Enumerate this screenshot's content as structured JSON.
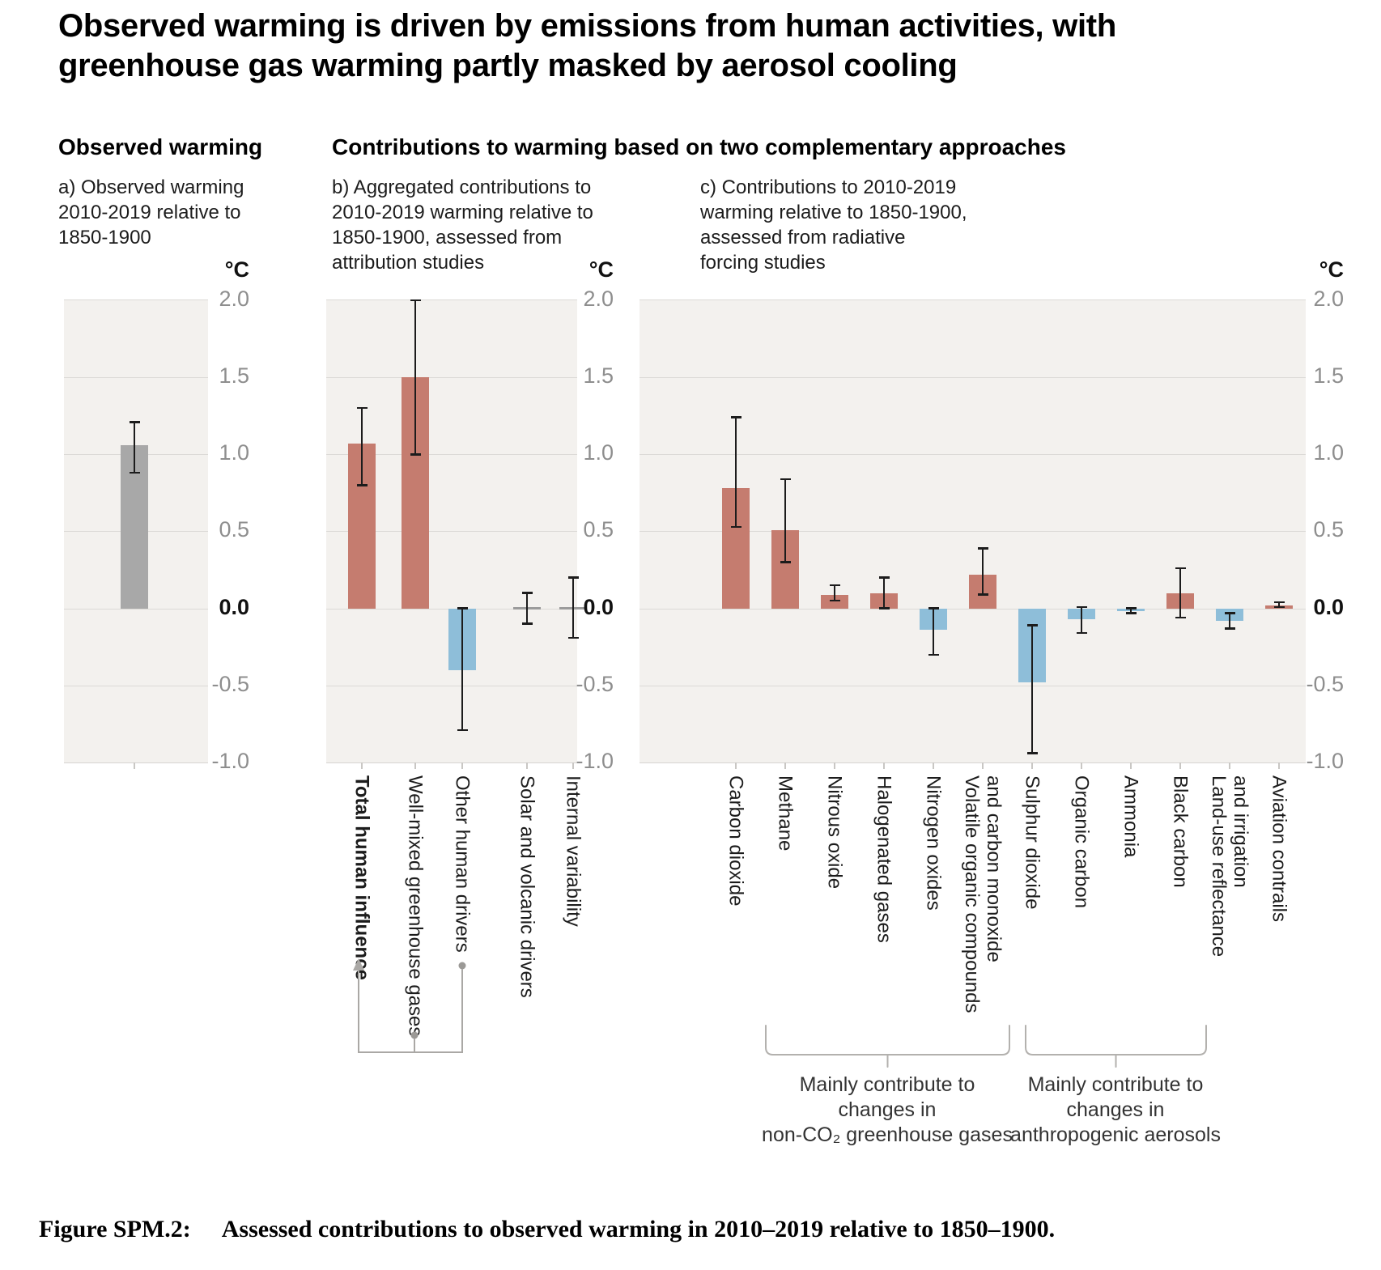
{
  "title": "Observed warming is driven by emissions from human activities, with\ngreenhouse gas warming partly masked by aerosol cooling",
  "headers": {
    "left": "Observed warming",
    "right": "Contributions to warming based on two complementary approaches"
  },
  "axis": {
    "unit": "°C",
    "ticks": [
      "2.0",
      "1.5",
      "1.0",
      "0.5",
      "0.0",
      "-0.5",
      "-1.0"
    ],
    "tick_values": [
      2,
      1.5,
      1,
      0.5,
      0,
      -0.5,
      -1
    ],
    "ymin": -1.0,
    "ymax": 2.0
  },
  "colors": {
    "warm": "#c57c6f",
    "cool": "#8ebed9",
    "neutral": "#a8a8a8",
    "plot_bg": "#f3f1ee",
    "gridline": "#dcdad7",
    "annotation_gray": "#aaa8a5"
  },
  "chart_data": [
    {
      "id": "a",
      "type": "bar",
      "caption": "a) Observed warming\n2010-2019 relative to\n1850-1900",
      "ylabel": "°C",
      "ylim": [
        -1.0,
        2.0
      ],
      "grid": true,
      "categories": [
        "Observed warming"
      ],
      "values": [
        1.06
      ],
      "err_lo": [
        0.88
      ],
      "err_hi": [
        1.21
      ],
      "colors": [
        "neutral"
      ],
      "bold": [
        false
      ],
      "show_category_labels": false
    },
    {
      "id": "b",
      "type": "bar",
      "caption": "b) Aggregated contributions to\n2010-2019 warming relative to\n1850-1900, assessed from\nattribution studies",
      "ylabel": "°C",
      "ylim": [
        -1.0,
        2.0
      ],
      "grid": true,
      "categories": [
        "Total human influence",
        "Well-mixed greenhouse gases",
        "Other human drivers",
        "Solar and volcanic drivers",
        "Internal variability"
      ],
      "values": [
        1.07,
        1.5,
        -0.4,
        0.0,
        0.0
      ],
      "err_lo": [
        0.8,
        1.0,
        -0.79,
        -0.1,
        -0.19
      ],
      "err_hi": [
        1.3,
        2.0,
        0.0,
        0.1,
        0.2
      ],
      "colors": [
        "warm",
        "warm",
        "cool",
        "none",
        "none"
      ],
      "bold": [
        true,
        false,
        false,
        false,
        false
      ],
      "show_category_labels": true
    },
    {
      "id": "c",
      "type": "bar",
      "caption": "c) Contributions to 2010-2019\nwarming relative to 1850-1900,\nassessed from radiative\nforcing studies",
      "ylabel": "°C",
      "ylim": [
        -1.0,
        2.0
      ],
      "grid": true,
      "categories": [
        "Carbon dioxide",
        "Methane",
        "Nitrous oxide",
        "Halogenated gases",
        "Nitrogen oxides",
        "Volatile organic compounds\nand carbon monoxide",
        "Sulphur dioxide",
        "Organic carbon",
        "Ammonia",
        "Black carbon",
        "Land-use reflectance\nand irrigation",
        "Aviation contrails"
      ],
      "values": [
        0.78,
        0.51,
        0.09,
        0.1,
        -0.14,
        0.22,
        -0.48,
        -0.07,
        -0.015,
        0.1,
        -0.08,
        0.02
      ],
      "err_lo": [
        0.53,
        0.3,
        0.05,
        0.0,
        -0.3,
        0.09,
        -0.94,
        -0.16,
        -0.03,
        -0.06,
        -0.13,
        0.01
      ],
      "err_hi": [
        1.24,
        0.84,
        0.15,
        0.2,
        0.0,
        0.39,
        -0.11,
        0.01,
        0.0,
        0.26,
        -0.03,
        0.04
      ],
      "colors": [
        "warm",
        "warm",
        "warm",
        "warm",
        "cool",
        "warm",
        "cool",
        "cool",
        "cool",
        "warm",
        "cool",
        "warm"
      ],
      "bold": [
        false,
        false,
        false,
        false,
        false,
        false,
        false,
        false,
        false,
        false,
        false,
        false
      ],
      "show_category_labels": true
    }
  ],
  "annotations": {
    "bracket1": "Mainly contribute to\nchanges in\nnon-CO₂ greenhouse gases",
    "bracket2": "Mainly contribute to\nchanges in\nanthropogenic aerosols"
  },
  "caption": {
    "label": "Figure SPM.2:",
    "text": "Assessed contributions to observed warming in 2010–2019 relative to 1850–1900."
  }
}
